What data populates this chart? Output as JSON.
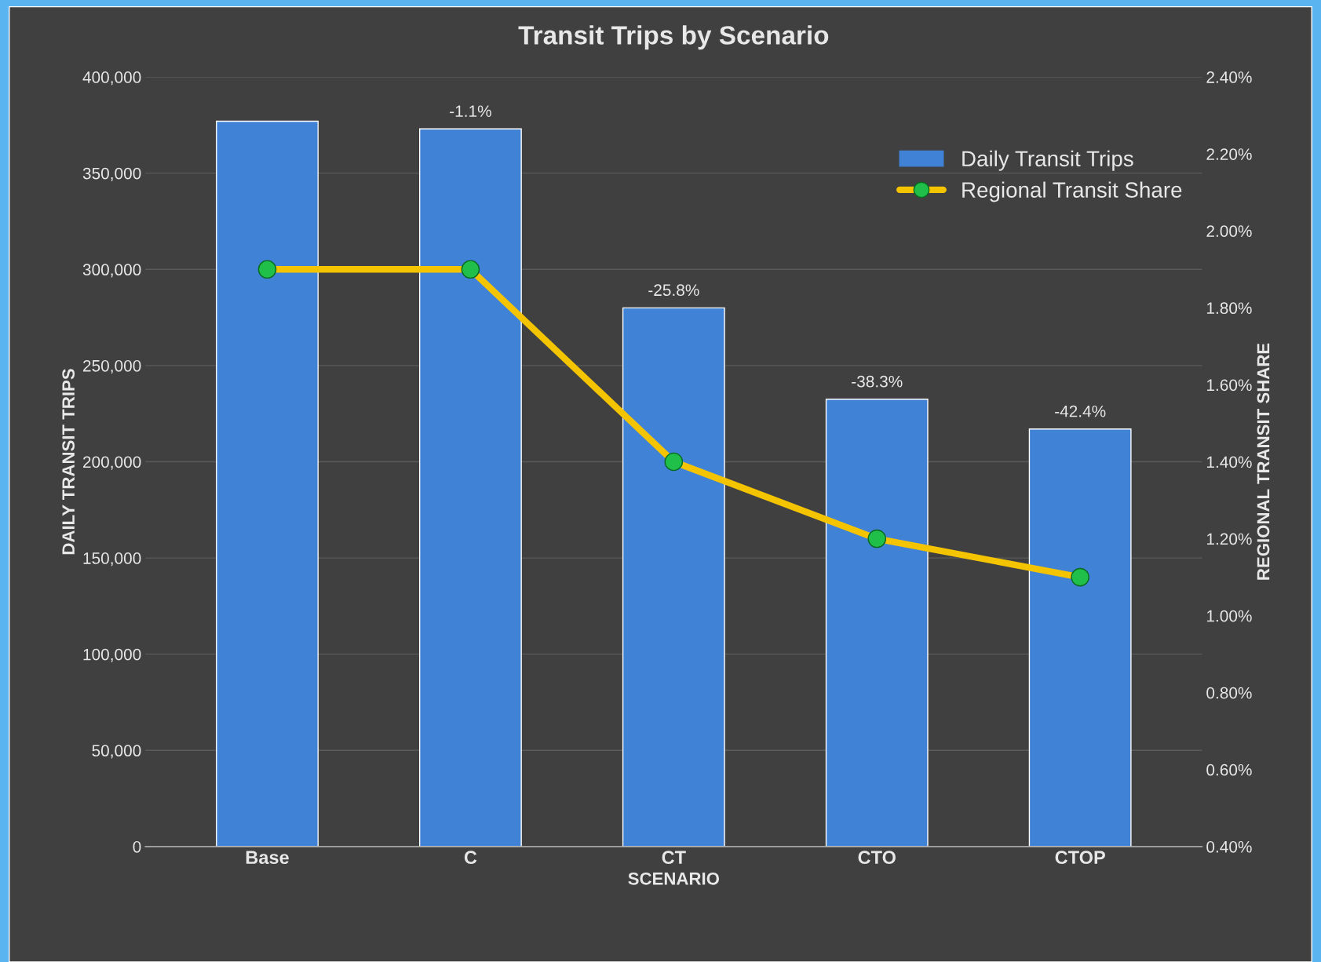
{
  "chart_data": {
    "type": "bar",
    "title": "Transit Trips by Scenario",
    "xlabel": "SCENARIO",
    "ylabel": "DAILY TRANSIT TRIPS",
    "y2label": "REGIONAL TRANSIT SHARE",
    "categories": [
      "Base",
      "C",
      "CT",
      "CTO",
      "CTOP"
    ],
    "series": [
      {
        "name": "Daily Transit Trips",
        "color": "#4082d6",
        "values": [
          377000,
          373000,
          280000,
          232500,
          217000
        ]
      },
      {
        "name": "Regional Transit Share",
        "type": "line",
        "axis": "y2",
        "color": "#f5c400",
        "marker": "circle",
        "values": [
          1.9,
          1.9,
          1.4,
          1.2,
          1.1
        ]
      }
    ],
    "annotations": [
      {
        "text": "-1.1%",
        "x": "C",
        "y": 373000
      },
      {
        "text": "-25.8%",
        "x": "CT",
        "y": 280000
      },
      {
        "text": "-38.3%",
        "x": "CTO",
        "y": 232500
      },
      {
        "text": "-42.4%",
        "x": "CTOP",
        "y": 217000
      }
    ],
    "ylim": [
      0,
      400000
    ],
    "yticks": [
      0,
      {
        "value": 50000,
        "label": "50,000"
      },
      {
        "value": 100000,
        "label": "100,000"
      },
      {
        "value": 150000,
        "label": "150,000"
      },
      {
        "value": 200000,
        "label": "200,000"
      },
      {
        "value": 250000,
        "label": "250,000"
      },
      {
        "value": 300000,
        "label": "300,000"
      },
      {
        "value": 350000,
        "label": "350,000"
      },
      {
        "value": 400000,
        "label": "400,000"
      }
    ],
    "y2lim": [
      0.4,
      2.4
    ],
    "y2ticks": [
      {
        "value": 0.4,
        "label": "0.40%"
      },
      {
        "value": 0.6,
        "label": "0.60%"
      },
      {
        "value": 0.8,
        "label": "0.80%"
      },
      {
        "value": 1.0,
        "label": "1.00%"
      },
      {
        "value": 1.2,
        "label": "1.20%"
      },
      {
        "value": 1.4,
        "label": "1.40%"
      },
      {
        "value": 1.6,
        "label": "1.60%"
      },
      {
        "value": 1.8,
        "label": "1.80%"
      },
      {
        "value": 2.0,
        "label": "2.00%"
      },
      {
        "value": 2.2,
        "label": "2.20%"
      },
      {
        "value": 2.4,
        "label": "2.40%"
      }
    ],
    "grid": "y",
    "legend": "top right"
  }
}
